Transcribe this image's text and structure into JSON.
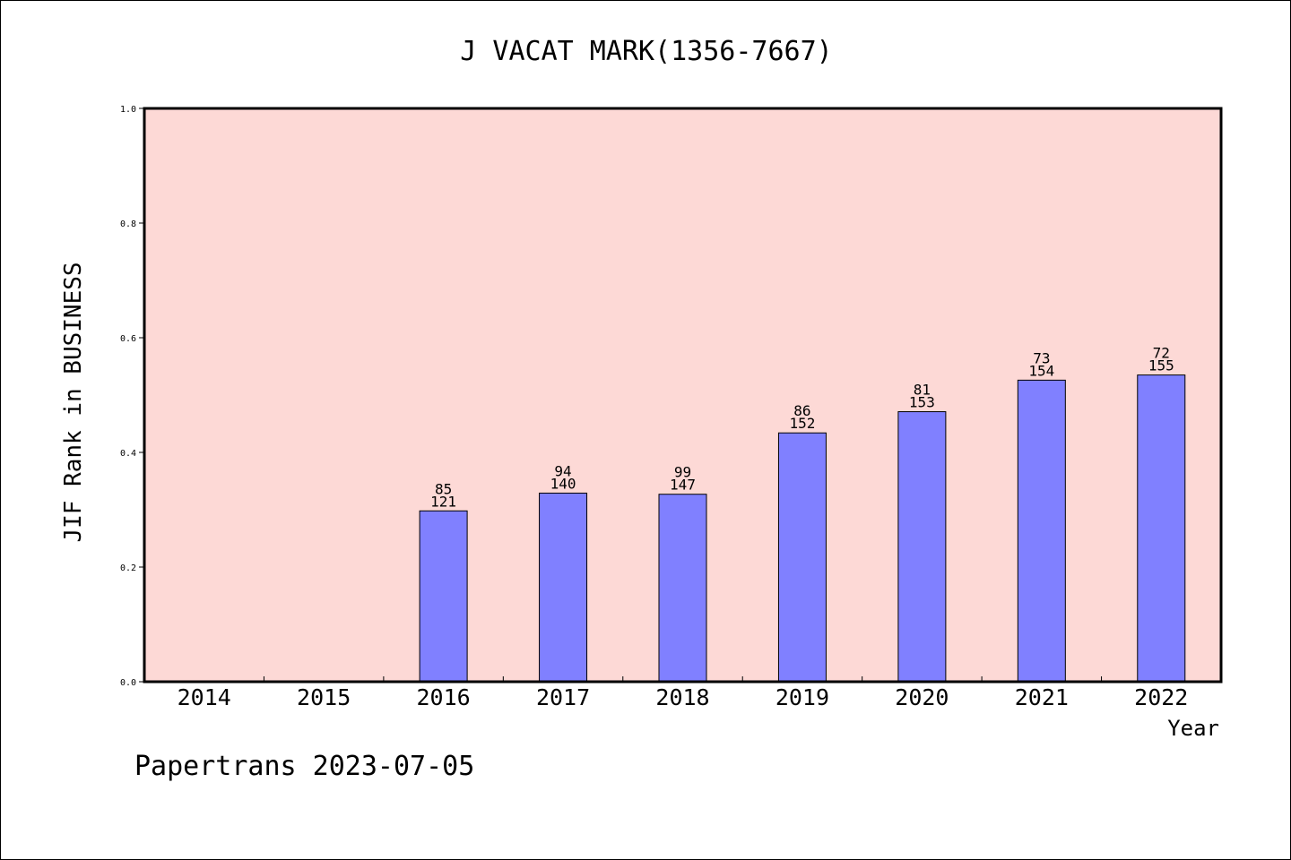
{
  "chart_data": {
    "type": "bar",
    "title": "J VACAT MARK(1356-7667)",
    "xlabel": "Year",
    "ylabel": "JIF Rank in BUSINESS",
    "categories": [
      "2014",
      "2015",
      "2016",
      "2017",
      "2018",
      "2019",
      "2020",
      "2021",
      "2022"
    ],
    "values": [
      null,
      null,
      0.298,
      0.329,
      0.327,
      0.434,
      0.471,
      0.526,
      0.535
    ],
    "rank_labels": [
      null,
      null,
      {
        "rank": "85",
        "total": "121"
      },
      {
        "rank": "94",
        "total": "140"
      },
      {
        "rank": "99",
        "total": "147"
      },
      {
        "rank": "86",
        "total": "152"
      },
      {
        "rank": "81",
        "total": "153"
      },
      {
        "rank": "73",
        "total": "154"
      },
      {
        "rank": "72",
        "total": "155"
      }
    ],
    "ylim": [
      0,
      1.0
    ],
    "yticks": [
      "0.0",
      "0.2",
      "0.4",
      "0.6",
      "0.8",
      "1.0"
    ],
    "grid": false,
    "colors": {
      "plot_background": "#fdd9d6",
      "bar_fill": "#8080ff",
      "bar_stroke": "#000000"
    }
  },
  "footer": "Papertrans 2023-07-05"
}
